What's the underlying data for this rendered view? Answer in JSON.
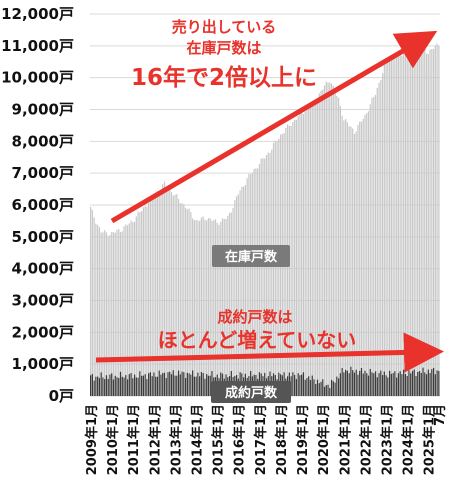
{
  "chart_data": {
    "type": "bar",
    "y_unit_suffix": "戸",
    "ylim": [
      0,
      12000
    ],
    "yticks": [
      0,
      1000,
      2000,
      3000,
      4000,
      5000,
      6000,
      7000,
      8000,
      9000,
      10000,
      11000,
      12000
    ],
    "ytick_labels": [
      "0戸",
      "1,000戸",
      "2,000戸",
      "3,000戸",
      "4,000戸",
      "5,000戸",
      "6,000戸",
      "7,000戸",
      "8,000戸",
      "9,000戸",
      "10,000戸",
      "11,000戸",
      "12,000戸"
    ],
    "xtick_labels": [
      "2009年1月",
      "2010年1月",
      "2011年1月",
      "2012年1月",
      "2013年1月",
      "2014年1月",
      "2015年1月",
      "2016年1月",
      "2017年1月",
      "2018年1月",
      "2019年1月",
      "2020年1月",
      "2021年1月",
      "2022年1月",
      "2023年1月",
      "2024年1月",
      "2025年1月",
      "7月"
    ],
    "x_range": [
      "2009-01",
      "2025-07"
    ],
    "grid": true,
    "series": [
      {
        "name": "在庫戸数",
        "color": "#c8c8c8",
        "points": [
          [
            "2009-01",
            5900
          ],
          [
            "2009-04",
            5500
          ],
          [
            "2009-07",
            5150
          ],
          [
            "2010-01",
            5100
          ],
          [
            "2010-07",
            5250
          ],
          [
            "2011-01",
            5500
          ],
          [
            "2011-07",
            5900
          ],
          [
            "2012-01",
            6300
          ],
          [
            "2012-07",
            6650
          ],
          [
            "2013-01",
            6300
          ],
          [
            "2013-07",
            5950
          ],
          [
            "2014-01",
            5500
          ],
          [
            "2014-07",
            5600
          ],
          [
            "2015-01",
            5450
          ],
          [
            "2015-07",
            5600
          ],
          [
            "2016-01",
            6350
          ],
          [
            "2016-07",
            6900
          ],
          [
            "2017-01",
            7300
          ],
          [
            "2017-07",
            7700
          ],
          [
            "2018-01",
            8200
          ],
          [
            "2018-07",
            8550
          ],
          [
            "2019-01",
            8900
          ],
          [
            "2019-07",
            9150
          ],
          [
            "2020-01",
            9650
          ],
          [
            "2020-05",
            9950
          ],
          [
            "2020-10",
            9300
          ],
          [
            "2021-01",
            8700
          ],
          [
            "2021-07",
            8300
          ],
          [
            "2022-01",
            8800
          ],
          [
            "2022-07",
            9500
          ],
          [
            "2023-01",
            10500
          ],
          [
            "2023-07",
            10700
          ],
          [
            "2024-01",
            10800
          ],
          [
            "2024-07",
            11000
          ],
          [
            "2025-01",
            10800
          ],
          [
            "2025-07",
            11050
          ]
        ]
      },
      {
        "name": "成約戸数",
        "color": "#3a3a3a",
        "points": [
          [
            "2009-01",
            600
          ],
          [
            "2011-01",
            630
          ],
          [
            "2013-01",
            720
          ],
          [
            "2015-01",
            640
          ],
          [
            "2017-01",
            660
          ],
          [
            "2019-01",
            660
          ],
          [
            "2020-05",
            320
          ],
          [
            "2021-01",
            820
          ],
          [
            "2023-01",
            690
          ],
          [
            "2025-07",
            800
          ]
        ]
      }
    ],
    "annotations": {
      "top_line1": "売り出している",
      "top_line2": "在庫戸数は",
      "top_line3": "16年で2倍以上に",
      "bottom_line1": "成約戸数は",
      "bottom_line2": "ほとんど増えていない",
      "label_stock": "在庫戸数",
      "label_contract": "成約戸数"
    },
    "colors": {
      "annotation_red": "#e8322b",
      "stock_bar": "#c8c8c8",
      "contract_bar": "#3a3a3a",
      "label_box": "#7a7a7a"
    }
  }
}
